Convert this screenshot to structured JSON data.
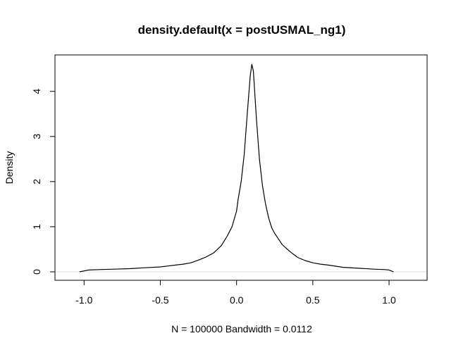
{
  "chart_data": {
    "type": "line",
    "title": "density.default(x = postUSMAL_ng1)",
    "xlabel": "N = 100000   Bandwidth = 0.0112",
    "ylabel": "Density",
    "xlim": [
      -1.08,
      1.12
    ],
    "ylim": [
      0,
      4.62
    ],
    "x_ticks": [
      -1.0,
      -0.5,
      0.0,
      0.5,
      1.0
    ],
    "x_tick_labels": [
      "-1.0",
      "-0.5",
      "0.0",
      "0.5",
      "1.0"
    ],
    "y_ticks": [
      0,
      1,
      2,
      3,
      4
    ],
    "y_tick_labels": [
      "0",
      "1",
      "2",
      "3",
      "4"
    ],
    "grid": false,
    "zero_line": true,
    "series": [
      {
        "color": "#000000",
        "x": [
          -1.03,
          -1.0,
          -0.97,
          -0.9,
          -0.8,
          -0.7,
          -0.6,
          -0.5,
          -0.45,
          -0.4,
          -0.35,
          -0.3,
          -0.25,
          -0.2,
          -0.15,
          -0.1,
          -0.06,
          -0.03,
          0.0,
          0.01,
          0.03,
          0.05,
          0.07,
          0.09,
          0.1,
          0.11,
          0.13,
          0.15,
          0.17,
          0.19,
          0.21,
          0.23,
          0.25,
          0.28,
          0.3,
          0.35,
          0.4,
          0.45,
          0.5,
          0.55,
          0.6,
          0.7,
          0.8,
          0.9,
          0.97,
          1.0,
          1.03
        ],
        "y": [
          0.0,
          0.02,
          0.04,
          0.05,
          0.06,
          0.07,
          0.09,
          0.11,
          0.13,
          0.15,
          0.17,
          0.2,
          0.26,
          0.33,
          0.42,
          0.58,
          0.8,
          1.0,
          1.35,
          1.6,
          2.0,
          2.6,
          3.5,
          4.35,
          4.6,
          4.45,
          3.4,
          2.5,
          1.9,
          1.5,
          1.2,
          0.98,
          0.85,
          0.7,
          0.6,
          0.45,
          0.32,
          0.25,
          0.2,
          0.17,
          0.15,
          0.1,
          0.08,
          0.06,
          0.05,
          0.04,
          0.0
        ]
      }
    ]
  }
}
